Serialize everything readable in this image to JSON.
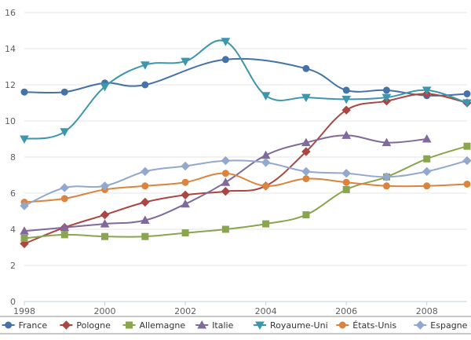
{
  "chart_data": {
    "type": "line",
    "x": [
      1998,
      1999,
      2000,
      2001,
      2002,
      2003,
      2004,
      2005,
      2006,
      2007,
      2008,
      2009
    ],
    "xlim": [
      1998,
      2009
    ],
    "ylim": [
      0,
      16
    ],
    "x_ticks": [
      1998,
      2000,
      2002,
      2004,
      2006,
      2008
    ],
    "y_ticks": [
      0,
      2,
      4,
      6,
      8,
      10,
      12,
      14,
      16
    ],
    "grid": "horizontal",
    "legend_placement": "bottom",
    "series": [
      {
        "name": "France",
        "color": "#4572a7",
        "marker": "circle",
        "values": [
          11.6,
          11.6,
          12.1,
          12.0,
          null,
          13.4,
          null,
          12.9,
          11.7,
          11.7,
          11.4,
          11.5
        ]
      },
      {
        "name": "Pologne",
        "color": "#aa4643",
        "marker": "diamond",
        "values": [
          3.2,
          4.1,
          4.8,
          5.5,
          5.9,
          6.1,
          6.4,
          8.3,
          10.6,
          11.1,
          11.5,
          11.0
        ]
      },
      {
        "name": "Allemagne",
        "color": "#89a54e",
        "marker": "square",
        "values": [
          3.5,
          3.7,
          3.6,
          3.6,
          3.8,
          4.0,
          4.3,
          4.8,
          6.2,
          6.9,
          7.9,
          8.6
        ]
      },
      {
        "name": "Italie",
        "color": "#80699b",
        "marker": "triangle",
        "values": [
          3.9,
          4.1,
          4.3,
          4.5,
          5.4,
          6.6,
          8.1,
          8.8,
          9.2,
          8.8,
          9.0,
          null
        ]
      },
      {
        "name": "Royaume-Uni",
        "color": "#3d96ae",
        "marker": "triangle-down",
        "values": [
          9.0,
          9.4,
          11.9,
          13.1,
          13.3,
          14.4,
          11.4,
          11.3,
          11.2,
          11.3,
          11.7,
          11.0
        ]
      },
      {
        "name": "États-Unis",
        "color": "#db843d",
        "marker": "circle",
        "values": [
          5.5,
          5.7,
          6.2,
          6.4,
          6.6,
          7.1,
          6.4,
          6.8,
          6.6,
          6.4,
          6.4,
          6.5
        ]
      },
      {
        "name": "Espagne",
        "color": "#92a8cd",
        "marker": "diamond",
        "values": [
          5.3,
          6.3,
          6.4,
          7.2,
          7.5,
          7.8,
          7.7,
          7.2,
          7.1,
          6.9,
          7.2,
          7.8
        ]
      }
    ]
  }
}
